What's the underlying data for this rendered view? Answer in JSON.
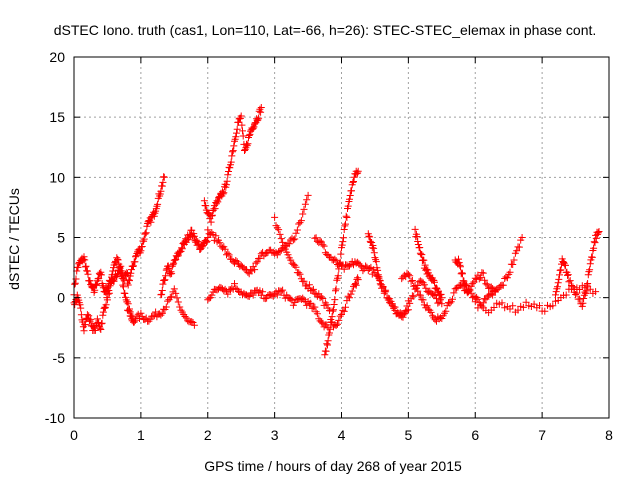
{
  "chart_data": {
    "type": "scatter",
    "title": "dSTEC Iono. truth (cas1, Lon=110, Lat=-66, h=26): STEC-STEC_elemax in phase cont.",
    "xlabel": "GPS time / hours of day 268 of year 2015",
    "ylabel": "dSTEC  / TECUs",
    "xlim": [
      0,
      8
    ],
    "ylim": [
      -10,
      20
    ],
    "xticks": [
      0,
      1,
      2,
      3,
      4,
      5,
      6,
      7,
      8
    ],
    "yticks": [
      -10,
      -5,
      0,
      5,
      10,
      15,
      20
    ],
    "xtick_labels": [
      "0",
      "1",
      "2",
      "3",
      "4",
      "5",
      "6",
      "7",
      "8"
    ],
    "ytick_labels": [
      "-10",
      "-5",
      "0",
      "5",
      "10",
      "15",
      "20"
    ],
    "grid": true,
    "marker": "+",
    "color": "#ff0000",
    "series": [
      {
        "x": [
          0.0,
          0.05,
          0.1,
          0.15,
          0.2,
          0.25,
          0.3,
          0.35,
          0.4,
          0.45,
          0.5,
          0.55,
          0.6,
          0.65,
          0.7,
          0.75,
          0.8,
          0.85,
          0.9
        ],
        "values": [
          0.5,
          2.5,
          3.0,
          3.3,
          2.0,
          1.0,
          0.5,
          1.5,
          2.0,
          0.5,
          0.8,
          1.5,
          2.8,
          3.2,
          2.0,
          0.5,
          -0.5,
          -1.5,
          -2.0
        ]
      },
      {
        "x": [
          0.0,
          0.05,
          0.1,
          0.15,
          0.2,
          0.25,
          0.3,
          0.35,
          0.4,
          0.45,
          0.5,
          0.55,
          0.6,
          0.65,
          0.7,
          0.75,
          0.8
        ],
        "values": [
          -0.5,
          0.0,
          -1.0,
          -2.5,
          -1.5,
          -2.0,
          -2.8,
          -2.0,
          -2.5,
          -1.0,
          0.0,
          1.0,
          1.5,
          2.0,
          2.5,
          1.5,
          2.0
        ]
      },
      {
        "x": [
          0.8,
          0.85,
          0.9,
          0.95,
          1.0,
          1.05,
          1.1,
          1.15,
          1.2,
          1.25,
          1.3,
          1.35
        ],
        "values": [
          1.0,
          2.0,
          3.0,
          3.8,
          4.0,
          5.0,
          6.0,
          6.5,
          7.0,
          8.0,
          9.0,
          10.0
        ]
      },
      {
        "x": [
          0.8,
          0.9,
          1.0,
          1.1,
          1.2,
          1.3,
          1.4,
          1.5,
          1.6,
          1.7,
          1.8
        ],
        "values": [
          -1.0,
          -1.8,
          -1.5,
          -1.8,
          -1.5,
          -1.2,
          -0.5,
          0.5,
          -1.0,
          -2.0,
          -2.3
        ]
      },
      {
        "x": [
          1.3,
          1.35,
          1.4,
          1.45,
          1.5,
          1.55,
          1.6,
          1.65,
          1.7,
          1.75,
          1.8,
          1.85,
          1.9,
          1.95,
          2.0
        ],
        "values": [
          0.0,
          1.5,
          2.5,
          2.0,
          3.0,
          3.5,
          4.0,
          4.5,
          5.0,
          5.5,
          5.0,
          4.5,
          4.0,
          4.5,
          5.0
        ]
      },
      {
        "x": [
          1.95,
          2.0,
          2.05,
          2.1,
          2.15,
          2.2,
          2.25,
          2.3,
          2.35,
          2.4,
          2.45,
          2.5,
          2.55,
          2.6,
          2.65,
          2.7,
          2.75,
          2.8
        ],
        "values": [
          8.0,
          7.0,
          6.5,
          7.5,
          8.0,
          8.5,
          9.0,
          10.0,
          11.5,
          13.0,
          14.5,
          15.0,
          12.0,
          13.0,
          14.0,
          14.5,
          15.0,
          15.8
        ]
      },
      {
        "x": [
          2.0,
          2.1,
          2.2,
          2.3,
          2.4,
          2.5,
          2.6,
          2.7,
          2.8,
          2.9,
          3.0,
          3.1,
          3.2,
          3.3,
          3.4,
          3.5
        ],
        "values": [
          5.5,
          5.0,
          4.5,
          3.5,
          3.0,
          2.5,
          2.0,
          2.5,
          3.5,
          4.0,
          3.5,
          4.0,
          4.5,
          5.0,
          6.5,
          8.5
        ]
      },
      {
        "x": [
          2.0,
          2.1,
          2.2,
          2.3,
          2.4,
          2.5,
          2.6,
          2.7,
          2.8,
          2.9,
          3.0,
          3.1,
          3.2,
          3.3,
          3.4,
          3.5,
          3.6,
          3.7,
          3.8
        ],
        "values": [
          0.0,
          0.5,
          1.0,
          0.5,
          1.0,
          0.5,
          0.0,
          0.5,
          0.3,
          0.0,
          0.3,
          0.5,
          0.0,
          -0.5,
          0.0,
          -0.5,
          -1.0,
          -2.0,
          -2.5
        ]
      },
      {
        "x": [
          3.0,
          3.1,
          3.2,
          3.3,
          3.4,
          3.5,
          3.6,
          3.7,
          3.8,
          3.9,
          4.0,
          4.1,
          4.2,
          4.25
        ],
        "values": [
          6.5,
          5.0,
          3.5,
          2.5,
          1.5,
          1.0,
          0.5,
          0.0,
          -1.0,
          -2.5,
          -1.5,
          0.0,
          1.0,
          1.5
        ]
      },
      {
        "x": [
          3.75,
          3.8,
          3.85,
          3.9,
          3.95,
          4.0,
          4.05,
          4.1,
          4.15,
          4.2,
          4.25
        ],
        "values": [
          -4.8,
          -3.5,
          -2.0,
          0.0,
          2.0,
          4.0,
          6.0,
          7.5,
          9.0,
          10.5,
          10.5
        ]
      },
      {
        "x": [
          3.6,
          3.7,
          3.8,
          3.9,
          4.0,
          4.1,
          4.2,
          4.3,
          4.4,
          4.5,
          4.6,
          4.7,
          4.8,
          4.9,
          5.0
        ],
        "values": [
          5.0,
          4.5,
          3.5,
          3.0,
          2.5,
          2.5,
          3.0,
          2.5,
          2.5,
          2.0,
          1.0,
          0.0,
          -1.0,
          -1.5,
          -1.0
        ]
      },
      {
        "x": [
          4.4,
          4.45,
          4.5,
          4.55,
          4.6,
          4.7,
          4.8,
          4.9,
          5.0,
          5.1,
          5.2,
          5.3,
          5.4,
          5.5
        ],
        "values": [
          5.5,
          4.5,
          3.5,
          2.0,
          1.0,
          0.0,
          -1.0,
          -1.5,
          -0.5,
          0.5,
          1.5,
          0.5,
          0.0,
          -0.5
        ]
      },
      {
        "x": [
          4.9,
          5.0,
          5.1,
          5.2,
          5.3,
          5.4,
          5.5,
          5.6,
          5.7,
          5.8,
          5.9,
          6.0,
          6.1,
          6.2,
          6.3
        ],
        "values": [
          1.5,
          2.0,
          1.0,
          0.0,
          -1.0,
          -2.0,
          -1.5,
          -0.5,
          0.5,
          1.0,
          0.5,
          1.5,
          2.0,
          1.0,
          0.5
        ]
      },
      {
        "x": [
          5.1,
          5.15,
          5.2,
          5.25,
          5.3,
          5.35,
          5.4,
          5.45,
          5.5
        ],
        "values": [
          5.5,
          4.5,
          3.5,
          2.5,
          2.0,
          1.5,
          1.0,
          0.5,
          0.0
        ]
      },
      {
        "x": [
          5.7,
          5.75,
          5.8,
          5.85,
          5.9,
          6.0,
          6.1,
          6.2,
          6.3,
          6.4,
          6.5,
          6.6,
          6.7
        ],
        "values": [
          3.2,
          3.0,
          2.0,
          1.0,
          0.5,
          0.0,
          -0.5,
          0.0,
          0.5,
          1.0,
          2.0,
          3.5,
          5.0
        ]
      },
      {
        "x": [
          6.0,
          6.2,
          6.4,
          6.6,
          6.8,
          7.0,
          7.2,
          7.4,
          7.6,
          7.8
        ],
        "values": [
          -0.5,
          -1.0,
          -0.5,
          -1.0,
          -0.5,
          -1.0,
          -0.5,
          0.5,
          1.0,
          0.5
        ]
      },
      {
        "x": [
          7.2,
          7.25,
          7.3,
          7.35,
          7.4,
          7.5,
          7.6,
          7.65,
          7.7,
          7.75,
          7.8,
          7.85
        ],
        "values": [
          0.0,
          1.5,
          3.0,
          2.5,
          1.5,
          0.5,
          -0.5,
          0.5,
          2.0,
          3.5,
          5.0,
          5.5
        ]
      }
    ]
  }
}
